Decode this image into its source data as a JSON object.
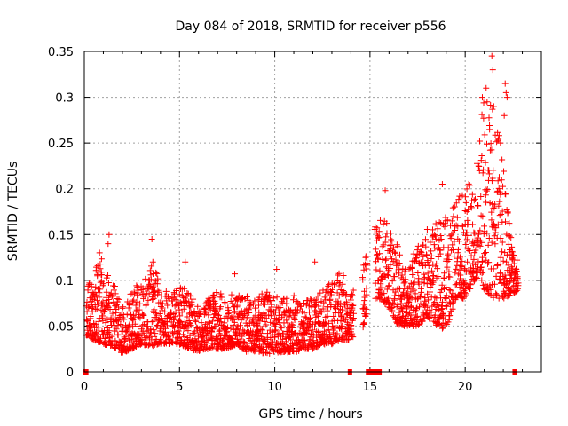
{
  "chart_data": {
    "type": "scatter",
    "title": "Day 084 of 2018, SRMTID for receiver p556",
    "xlabel": "GPS time / hours",
    "ylabel": "SRMTID / TECUs",
    "xlim": [
      0,
      24
    ],
    "ylim": [
      0,
      0.35
    ],
    "x_ticks": [
      0,
      5,
      10,
      15,
      20
    ],
    "x_tick_labels": [
      "0",
      "5",
      "10",
      "15",
      "20"
    ],
    "y_ticks": [
      0,
      0.05,
      0.1,
      0.15,
      0.2,
      0.25,
      0.3,
      0.35
    ],
    "y_tick_labels": [
      "0",
      "0.05",
      "0.1",
      "0.15",
      "0.2",
      "0.25",
      "0.3",
      "0.35"
    ],
    "grid": true,
    "marker": "plus",
    "color": "#ff0000",
    "envelope_x": [
      0.1,
      0.5,
      1.0,
      1.5,
      2.0,
      2.5,
      3.0,
      3.5,
      4.0,
      4.5,
      5.0,
      5.5,
      6.0,
      6.5,
      7.0,
      7.5,
      8.0,
      8.5,
      9.0,
      9.5,
      10.0,
      10.5,
      11.0,
      11.5,
      12.0,
      12.5,
      13.0,
      13.5,
      14.0,
      14.5,
      15.0,
      15.5,
      16.0,
      16.5,
      17.0,
      17.5,
      18.0,
      18.5,
      19.0,
      19.5,
      20.0,
      20.5,
      21.0,
      21.5,
      22.0,
      22.5,
      22.8
    ],
    "envelope_low": [
      0.04,
      0.035,
      0.03,
      0.028,
      0.02,
      0.025,
      0.03,
      0.028,
      0.03,
      0.03,
      0.03,
      0.025,
      0.022,
      0.025,
      0.025,
      0.025,
      0.03,
      0.022,
      0.022,
      0.02,
      0.02,
      0.022,
      0.02,
      0.025,
      0.025,
      0.03,
      0.03,
      0.035,
      0.035,
      0.035,
      0.08,
      0.08,
      0.07,
      0.05,
      0.05,
      0.05,
      0.06,
      0.05,
      0.045,
      0.08,
      0.08,
      0.1,
      0.09,
      0.08,
      0.08,
      0.085,
      0.09
    ],
    "envelope_high": [
      0.09,
      0.11,
      0.13,
      0.1,
      0.07,
      0.09,
      0.1,
      0.12,
      0.1,
      0.08,
      0.1,
      0.09,
      0.07,
      0.08,
      0.09,
      0.08,
      0.09,
      0.085,
      0.08,
      0.09,
      0.09,
      0.08,
      0.085,
      0.08,
      0.08,
      0.09,
      0.1,
      0.11,
      0.09,
      0.1,
      0.15,
      0.17,
      0.16,
      0.14,
      0.12,
      0.14,
      0.16,
      0.17,
      0.18,
      0.19,
      0.2,
      0.22,
      0.3,
      0.32,
      0.24,
      0.13,
      0.12
    ],
    "spikes": [
      {
        "x": 1.3,
        "y": 0.15
      },
      {
        "x": 1.25,
        "y": 0.14
      },
      {
        "x": 0.8,
        "y": 0.13
      },
      {
        "x": 3.55,
        "y": 0.145
      },
      {
        "x": 3.6,
        "y": 0.12
      },
      {
        "x": 5.3,
        "y": 0.12
      },
      {
        "x": 7.9,
        "y": 0.107
      },
      {
        "x": 10.1,
        "y": 0.112
      },
      {
        "x": 12.1,
        "y": 0.12
      },
      {
        "x": 15.8,
        "y": 0.198
      },
      {
        "x": 18.8,
        "y": 0.205
      },
      {
        "x": 20.9,
        "y": 0.3
      },
      {
        "x": 21.1,
        "y": 0.31
      },
      {
        "x": 21.15,
        "y": 0.295
      },
      {
        "x": 21.4,
        "y": 0.345
      },
      {
        "x": 21.45,
        "y": 0.33
      },
      {
        "x": 21.5,
        "y": 0.29
      },
      {
        "x": 22.1,
        "y": 0.315
      },
      {
        "x": 22.15,
        "y": 0.305
      },
      {
        "x": 22.2,
        "y": 0.3
      },
      {
        "x": 22.05,
        "y": 0.28
      },
      {
        "x": 21.85,
        "y": 0.25
      }
    ],
    "zero_markers_x": [
      0.05,
      0.1,
      13.95,
      14.9,
      15.0,
      15.1,
      15.2,
      15.3,
      15.4,
      15.5,
      22.6
    ]
  }
}
